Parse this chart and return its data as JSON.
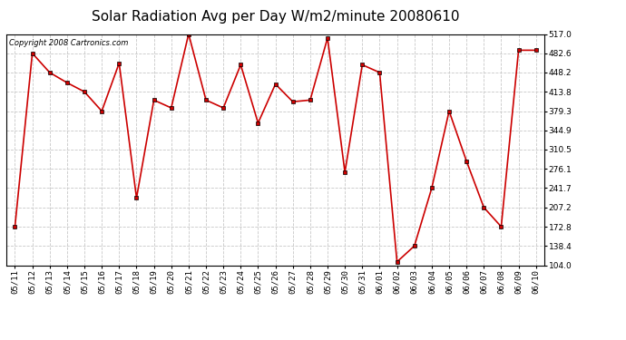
{
  "title": "Solar Radiation Avg per Day W/m2/minute 20080610",
  "copyright": "Copyright 2008 Cartronics.com",
  "x_labels": [
    "05/11",
    "05/12",
    "05/13",
    "05/14",
    "05/15",
    "05/16",
    "05/17",
    "05/18",
    "05/19",
    "05/20",
    "05/21",
    "05/22",
    "05/23",
    "05/24",
    "05/25",
    "05/26",
    "05/27",
    "05/28",
    "05/29",
    "05/30",
    "05/31",
    "06/01",
    "06/02",
    "06/03",
    "06/04",
    "06/05",
    "06/06",
    "06/07",
    "06/08",
    "06/09",
    "06/10"
  ],
  "y_values": [
    172.8,
    482.6,
    448.2,
    430.0,
    413.8,
    379.3,
    465.0,
    224.0,
    399.0,
    385.0,
    517.0,
    399.0,
    385.0,
    462.0,
    358.0,
    427.5,
    396.0,
    399.0,
    510.0,
    270.0,
    462.0,
    448.2,
    110.0,
    138.4,
    241.7,
    379.3,
    290.0,
    207.2,
    172.8,
    488.0,
    488.0
  ],
  "y_min": 104.0,
  "y_max": 517.0,
  "y_ticks": [
    104.0,
    138.4,
    172.8,
    207.2,
    241.7,
    276.1,
    310.5,
    344.9,
    379.3,
    413.8,
    448.2,
    482.6,
    517.0
  ],
  "line_color": "#cc0000",
  "marker_color": "#cc0000",
  "bg_color": "#ffffff",
  "grid_color": "#c8c8c8",
  "title_fontsize": 11,
  "tick_fontsize": 6.5,
  "copyright_fontsize": 6
}
